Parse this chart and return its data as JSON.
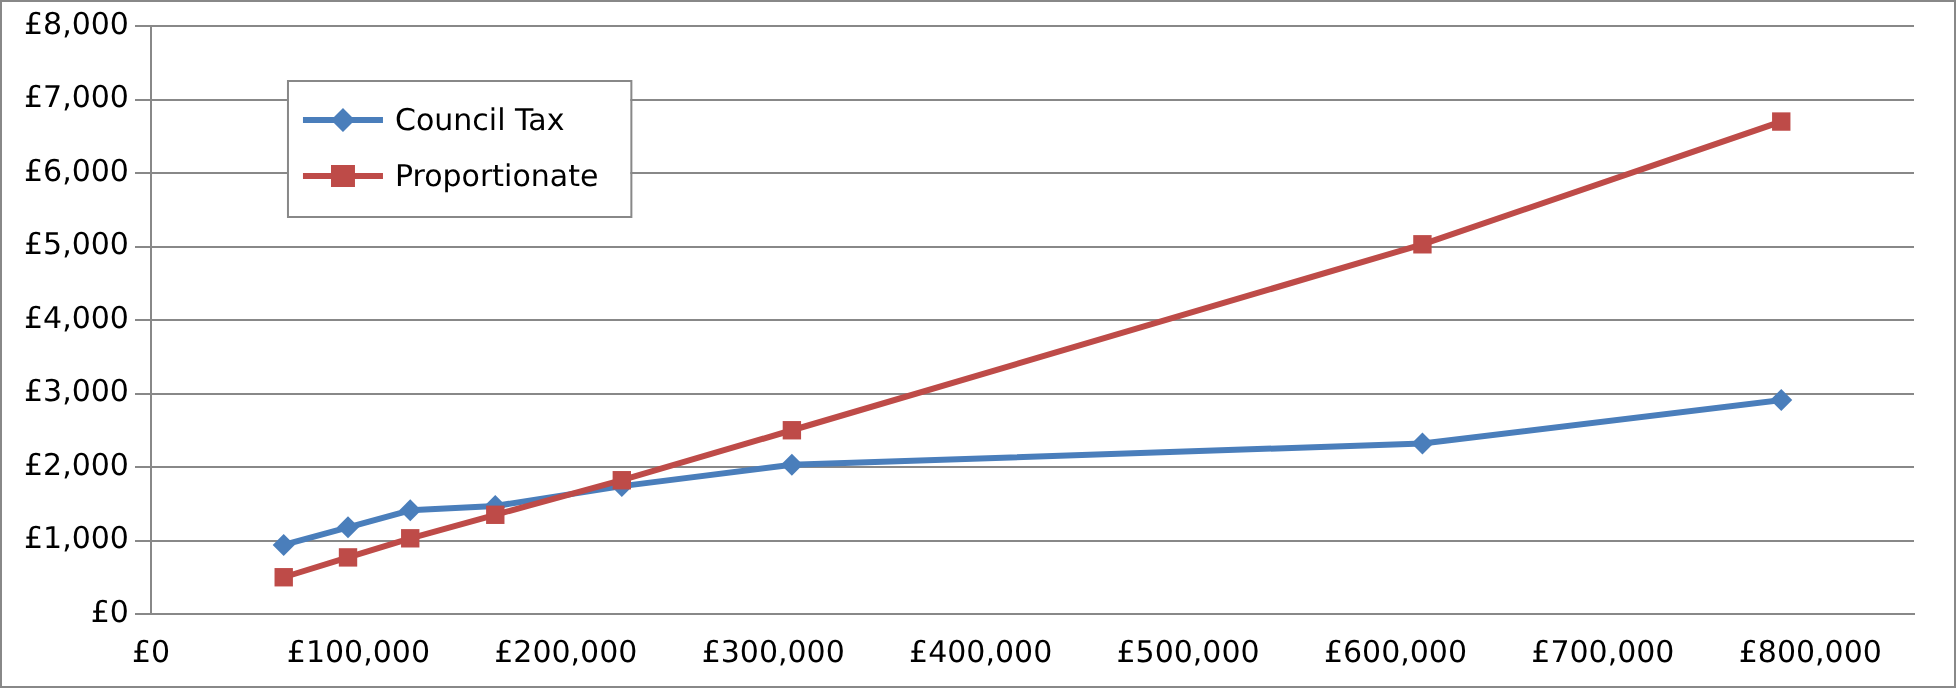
{
  "chart_data": {
    "type": "line",
    "x": [
      64000,
      95000,
      125000,
      166000,
      227000,
      309000,
      613000,
      786000
    ],
    "series": [
      {
        "name": "Council Tax",
        "color": "#4a7ebb",
        "marker": "diamond",
        "values": [
          940,
          1180,
          1410,
          1470,
          1740,
          2030,
          2320,
          2910
        ]
      },
      {
        "name": "Proportionate",
        "color": "#be4b48",
        "marker": "square",
        "values": [
          500,
          770,
          1030,
          1350,
          1820,
          2500,
          5030,
          6700
        ]
      }
    ],
    "xlim": [
      0,
      850000
    ],
    "xticks": [
      {
        "value": 0,
        "label": "£0"
      },
      {
        "value": 100000,
        "label": "£100,000"
      },
      {
        "value": 200000,
        "label": "£200,000"
      },
      {
        "value": 300000,
        "label": "£300,000"
      },
      {
        "value": 400000,
        "label": "£400,000"
      },
      {
        "value": 500000,
        "label": "£500,000"
      },
      {
        "value": 600000,
        "label": "£600,000"
      },
      {
        "value": 700000,
        "label": "£700,000"
      },
      {
        "value": 800000,
        "label": "£800,000"
      }
    ],
    "ylim": [
      0,
      8000
    ],
    "yticks": [
      {
        "value": 0,
        "label": "£0"
      },
      {
        "value": 1000,
        "label": "£1,000"
      },
      {
        "value": 2000,
        "label": "£2,000"
      },
      {
        "value": 3000,
        "label": "£3,000"
      },
      {
        "value": 4000,
        "label": "£4,000"
      },
      {
        "value": 5000,
        "label": "£5,000"
      },
      {
        "value": 6000,
        "label": "£6,000"
      },
      {
        "value": 7000,
        "label": "£7,000"
      },
      {
        "value": 8000,
        "label": "£8,000"
      }
    ],
    "grid": "y",
    "legend": "top left"
  }
}
